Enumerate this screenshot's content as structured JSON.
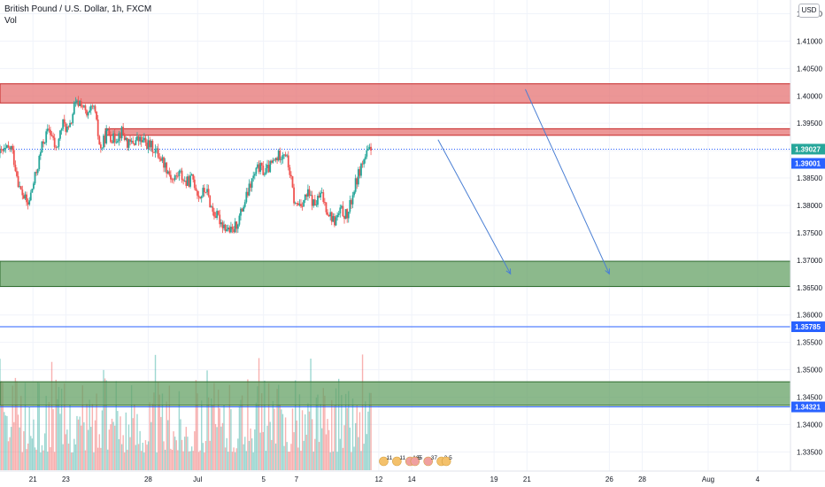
{
  "header": {
    "title": "British Pound / U.S. Dollar, 1h, FXCM",
    "indicator": "Vol",
    "currency": "USD"
  },
  "colors": {
    "up": "#26a69a",
    "down": "#ef5350",
    "resistance_fill": "#e57373",
    "resistance_stroke": "#c62828",
    "support_fill": "#66a166",
    "support_stroke": "#2e6b2e",
    "line_blue": "#2962ff",
    "arrow_blue": "#4a7fd4"
  },
  "chart_data": {
    "type": "candlestick",
    "symbol": "GBPUSD",
    "interval": "1h",
    "ylim": [
      1.3315,
      1.4175
    ],
    "y_ticks": [
      "1.41500",
      "1.41000",
      "1.40500",
      "1.40000",
      "1.39500",
      "1.39000",
      "1.38500",
      "1.38000",
      "1.37500",
      "1.37000",
      "1.36500",
      "1.36000",
      "1.35500",
      "1.35000",
      "1.34500",
      "1.34000",
      "1.33500"
    ],
    "x_ticks": [
      {
        "label": "21",
        "day": 21
      },
      {
        "label": "23",
        "day": 23
      },
      {
        "label": "28",
        "day": 28
      },
      {
        "label": "Jul",
        "day": 31
      },
      {
        "label": "5",
        "day": 35
      },
      {
        "label": "7",
        "day": 37
      },
      {
        "label": "12",
        "day": 42
      },
      {
        "label": "14",
        "day": 44
      },
      {
        "label": "19",
        "day": 49
      },
      {
        "label": "21",
        "day": 51
      },
      {
        "label": "26",
        "day": 56
      },
      {
        "label": "28",
        "day": 58
      },
      {
        "label": "Aug",
        "day": 62
      },
      {
        "label": "4",
        "day": 65
      }
    ],
    "price_path": [
      [
        19.0,
        1.3895
      ],
      [
        19.7,
        1.3905
      ],
      [
        20.2,
        1.383
      ],
      [
        20.7,
        1.38
      ],
      [
        21.2,
        1.386
      ],
      [
        21.6,
        1.3915
      ],
      [
        22.0,
        1.394
      ],
      [
        22.4,
        1.39
      ],
      [
        22.8,
        1.395
      ],
      [
        23.2,
        1.3935
      ],
      [
        23.5,
        1.398
      ],
      [
        23.9,
        1.399
      ],
      [
        24.3,
        1.396
      ],
      [
        24.7,
        1.398
      ],
      [
        25.1,
        1.39
      ],
      [
        25.5,
        1.3935
      ],
      [
        25.9,
        1.392
      ],
      [
        26.4,
        1.3935
      ],
      [
        26.8,
        1.391
      ],
      [
        27.3,
        1.392
      ],
      [
        27.8,
        1.3915
      ],
      [
        28.3,
        1.3905
      ],
      [
        28.7,
        1.389
      ],
      [
        29.1,
        1.387
      ],
      [
        29.5,
        1.3845
      ],
      [
        29.9,
        1.386
      ],
      [
        30.3,
        1.384
      ],
      [
        30.7,
        1.385
      ],
      [
        31.1,
        1.3815
      ],
      [
        31.5,
        1.383
      ],
      [
        31.9,
        1.379
      ],
      [
        32.3,
        1.3775
      ],
      [
        32.7,
        1.376
      ],
      [
        33.1,
        1.375
      ],
      [
        33.5,
        1.3775
      ],
      [
        33.9,
        1.381
      ],
      [
        34.3,
        1.3845
      ],
      [
        34.7,
        1.387
      ],
      [
        35.1,
        1.386
      ],
      [
        35.5,
        1.3875
      ],
      [
        35.9,
        1.389
      ],
      [
        36.3,
        1.39
      ],
      [
        36.6,
        1.386
      ],
      [
        36.9,
        1.38
      ],
      [
        37.3,
        1.3805
      ],
      [
        37.7,
        1.382
      ],
      [
        38.1,
        1.38
      ],
      [
        38.5,
        1.382
      ],
      [
        38.9,
        1.379
      ],
      [
        39.3,
        1.377
      ],
      [
        39.7,
        1.379
      ],
      [
        40.1,
        1.378
      ],
      [
        40.5,
        1.383
      ],
      [
        40.9,
        1.387
      ],
      [
        41.3,
        1.3895
      ],
      [
        41.6,
        1.3902
      ]
    ],
    "current_price": "1.39027",
    "bid_price": "1.39001",
    "horizontal_levels": [
      {
        "label": "1.35785",
        "price": 1.35785
      },
      {
        "label": "1.34321",
        "price": 1.34321
      }
    ],
    "resistance_zones": [
      {
        "from_day": 19.0,
        "to_day": 67.0,
        "low": 1.3987,
        "high": 1.4022
      },
      {
        "from_day": 25.4,
        "to_day": 67.0,
        "low": 1.3928,
        "high": 1.394
      }
    ],
    "support_zones": [
      {
        "from_day": 19.0,
        "to_day": 67.0,
        "low": 1.3652,
        "high": 1.3698
      },
      {
        "from_day": 19.0,
        "to_day": 67.0,
        "low": 1.3435,
        "high": 1.3478
      }
    ],
    "projection_arrows": [
      {
        "from_day": 45.6,
        "from_price": 1.392,
        "to_day": 50.0,
        "to_price": 1.3675
      },
      {
        "from_day": 50.9,
        "from_price": 1.4012,
        "to_day": 56.0,
        "to_price": 1.3675
      }
    ],
    "event_markers": [
      "11",
      "11",
      "165",
      "5",
      "37",
      "2",
      "5"
    ]
  }
}
